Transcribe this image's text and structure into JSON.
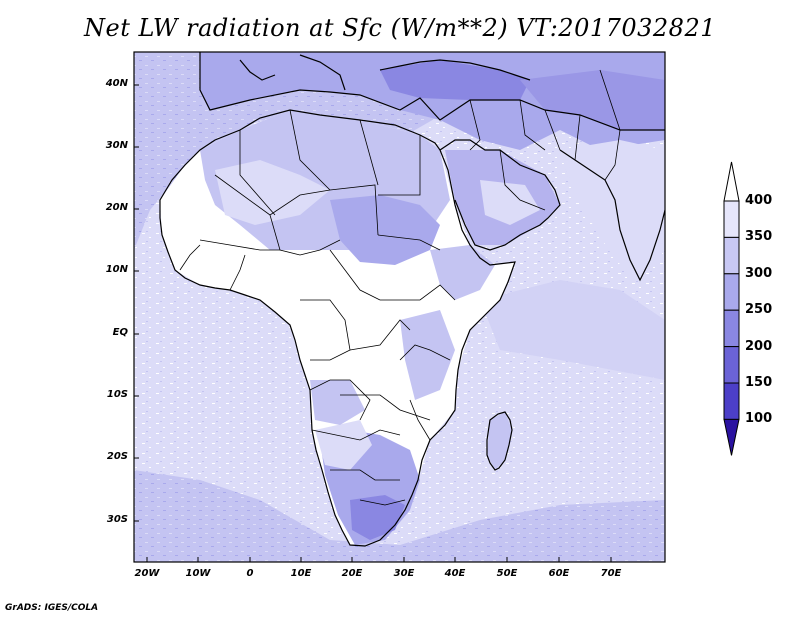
{
  "title": "Net LW radiation at Sfc (W/m**2) VT:2017032821",
  "lat_labels": [
    "40N",
    "30N",
    "20N",
    "10N",
    "EQ",
    "10S",
    "20S",
    "30S"
  ],
  "lon_labels": [
    "20W",
    "10W",
    "0",
    "10E",
    "20E",
    "30E",
    "40E",
    "50E",
    "60E",
    "70E"
  ],
  "colorbar": {
    "levels": [
      "400",
      "350",
      "300",
      "250",
      "200",
      "150",
      "100"
    ],
    "colors": [
      "#e6e6fb",
      "#c8c8f4",
      "#a9a9ec",
      "#8a87e2",
      "#6b63d6",
      "#4c3fc8",
      "#2f1aae"
    ],
    "top_arrow_color": "#ffffff",
    "bottom_arrow_color": "#2a12a0"
  },
  "field_colors": {
    "ocean_high": "#dcdcf8",
    "ocean_mid": "#c4c4f2",
    "land_low": "#ffffff",
    "land_mid": "#b5b3ee",
    "land_dense": "#9a97e6",
    "land_darkest": "#8580de"
  },
  "credit": "GrADS: IGES/COLA"
}
